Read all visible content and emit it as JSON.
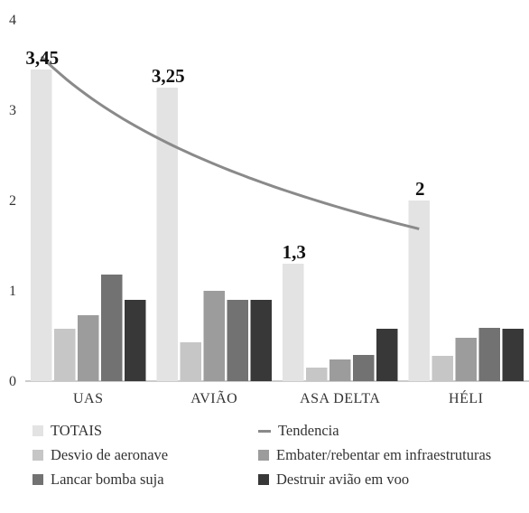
{
  "chart_data": {
    "type": "bar",
    "categories": [
      "UAS",
      "AVIÃO",
      "ASA DELTA",
      "HÉLI"
    ],
    "ylim": [
      0,
      4
    ],
    "yticks": [
      "0",
      "1",
      "2",
      "3",
      "4"
    ],
    "grid": false,
    "legend_position": "bottom",
    "series": [
      {
        "name": "TOTAIS",
        "values": [
          3.45,
          3.25,
          1.3,
          2
        ],
        "color": "#e3e3e3"
      },
      {
        "name": "Desvio de aeronave",
        "values": [
          0.58,
          0.43,
          0.15,
          0.28
        ],
        "color": "#c6c6c6"
      },
      {
        "name": "Embater/rebentar em infraestruturas",
        "values": [
          0.73,
          1.0,
          0.24,
          0.48
        ],
        "color": "#9c9c9c"
      },
      {
        "name": "Lancar bomba suja",
        "values": [
          1.18,
          0.9,
          0.29,
          0.59
        ],
        "color": "#727272"
      },
      {
        "name": "Destruir avião em voo",
        "values": [
          0.9,
          0.9,
          0.58,
          0.58
        ],
        "color": "#383838"
      }
    ],
    "data_labels": [
      "3,45",
      "3,25",
      "1,3",
      "2"
    ],
    "trendline": {
      "name": "Tendencia",
      "type": "logarithmic",
      "color": "#8a8a8a"
    }
  }
}
